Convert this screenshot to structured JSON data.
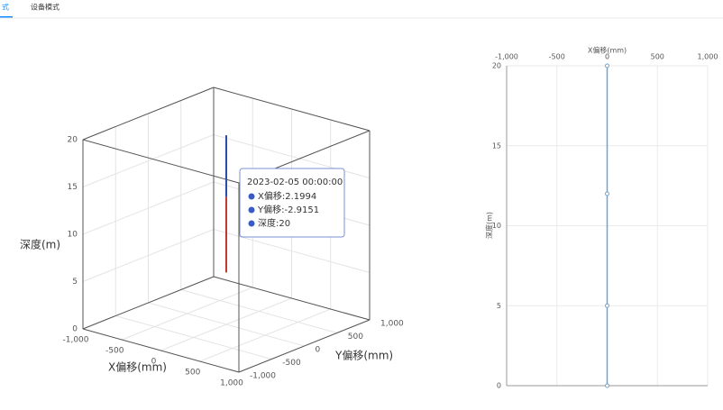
{
  "tabs": [
    "式",
    "设备模式"
  ],
  "chart_data": [
    {
      "type": "line3d",
      "z_label": "深度(m)",
      "x_label": "X偏移(mm)",
      "y_label": "Y偏移(mm)",
      "xlim": [
        -1000,
        1000
      ],
      "xticks": [
        {
          "value": -1000,
          "label": "-1,000"
        },
        -500,
        0,
        500,
        {
          "value": 1000,
          "label": "1,000"
        }
      ],
      "ylim": [
        -1000,
        1000
      ],
      "yticks": [
        {
          "value": -1000,
          "label": "-1,000"
        },
        -500,
        0,
        500,
        {
          "value": 1000,
          "label": "1,000"
        }
      ],
      "zlim": [
        0,
        20
      ],
      "zticks": [
        0,
        5,
        10,
        15,
        20
      ],
      "series": [
        {
          "color": "#c23531",
          "x": [
            2.1994,
            2.1994
          ],
          "y": [
            -2.9151,
            -2.9151
          ],
          "z": [
            5.5,
            13.5
          ]
        },
        {
          "color": "#3049a3",
          "x": [
            2.1994,
            2.1994
          ],
          "y": [
            -2.9151,
            -2.9151
          ],
          "z": [
            13.5,
            20
          ]
        }
      ],
      "tooltip": {
        "title": "2023-02-05 00:00:00",
        "lines": [
          "X偏移:2.1994",
          "Y偏移:-2.9151",
          "深度:20"
        ]
      }
    },
    {
      "type": "line",
      "x_label": "X偏移(mm)",
      "y_label": "深度(m)",
      "xlim": [
        -1000,
        1000
      ],
      "xticks": [
        {
          "value": -1000,
          "label": "-1,000"
        },
        -500,
        0,
        500,
        {
          "value": 1000,
          "label": "1,000"
        }
      ],
      "ylim": [
        0,
        20
      ],
      "yticks": [
        0,
        5,
        10,
        15,
        20
      ],
      "series": [
        {
          "color": "#6fa3cf",
          "x": [
            0,
            0,
            0,
            0
          ],
          "values": [
            0,
            5,
            12,
            20
          ]
        }
      ]
    }
  ]
}
